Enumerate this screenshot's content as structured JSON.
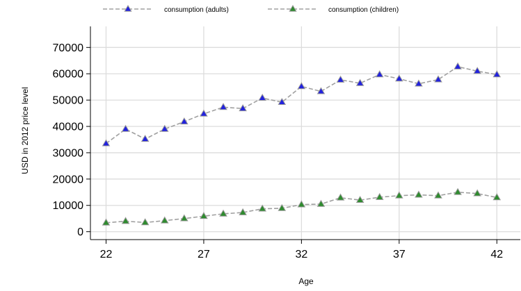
{
  "chart_data": {
    "type": "line",
    "xlabel": "Age",
    "ylabel": "USD in 2012 price level",
    "xlim": [
      21.2,
      43.2
    ],
    "ylim": [
      -3000,
      78000
    ],
    "xticks": [
      22,
      27,
      32,
      37,
      42
    ],
    "yticks": [
      0,
      10000,
      20000,
      30000,
      40000,
      50000,
      60000,
      70000
    ],
    "grid": true,
    "legend_position": "top",
    "x": [
      22,
      23,
      24,
      25,
      26,
      27,
      28,
      29,
      30,
      31,
      32,
      33,
      34,
      35,
      36,
      37,
      38,
      39,
      40,
      41,
      42
    ],
    "series": [
      {
        "name": "consumption (adults)",
        "marker_color": "#2222dd",
        "line_color": "#a0a0a0",
        "values": [
          33500,
          39000,
          35200,
          39000,
          41800,
          44800,
          47300,
          46800,
          50800,
          49200,
          55200,
          53300,
          57700,
          56400,
          59700,
          58100,
          56200,
          57800,
          62700,
          61000,
          59700
        ]
      },
      {
        "name": "consumption (children)",
        "marker_color": "#2e8b2e",
        "line_color": "#a0a0a0",
        "values": [
          3400,
          4000,
          3500,
          4200,
          5000,
          5900,
          6800,
          7300,
          8700,
          8900,
          10300,
          10500,
          12900,
          12000,
          13100,
          13700,
          14000,
          13700,
          15000,
          14500,
          13000
        ]
      }
    ]
  }
}
